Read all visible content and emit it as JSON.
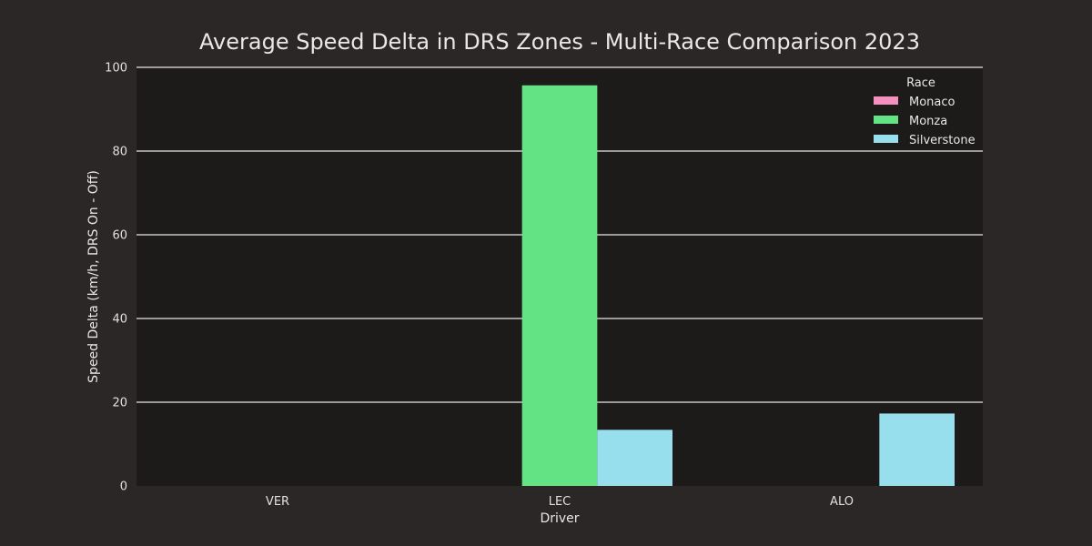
{
  "chart_data": {
    "type": "bar",
    "title": "Average Speed Delta in DRS Zones - Multi-Race Comparison 2023",
    "xlabel": "Driver",
    "ylabel": "Speed Delta (km/h, DRS On - Off)",
    "categories": [
      "VER",
      "LEC",
      "ALO"
    ],
    "series": [
      {
        "name": "Monaco",
        "color": "#f48fc0",
        "values": [
          null,
          null,
          null
        ]
      },
      {
        "name": "Monza",
        "color": "#63e384",
        "values": [
          null,
          95.7,
          null
        ]
      },
      {
        "name": "Silverstone",
        "color": "#98dfed",
        "values": [
          null,
          13.4,
          17.3
        ]
      }
    ],
    "ylim": [
      0,
      100
    ],
    "yticks": [
      0,
      20,
      40,
      60,
      80,
      100
    ],
    "grid": true,
    "legend": {
      "title": "Race",
      "placement": "top-right"
    },
    "colors": {
      "page_bg": "#2b2726",
      "plot_bg": "#1c1b1a",
      "grid": "#e8e8e8"
    }
  }
}
